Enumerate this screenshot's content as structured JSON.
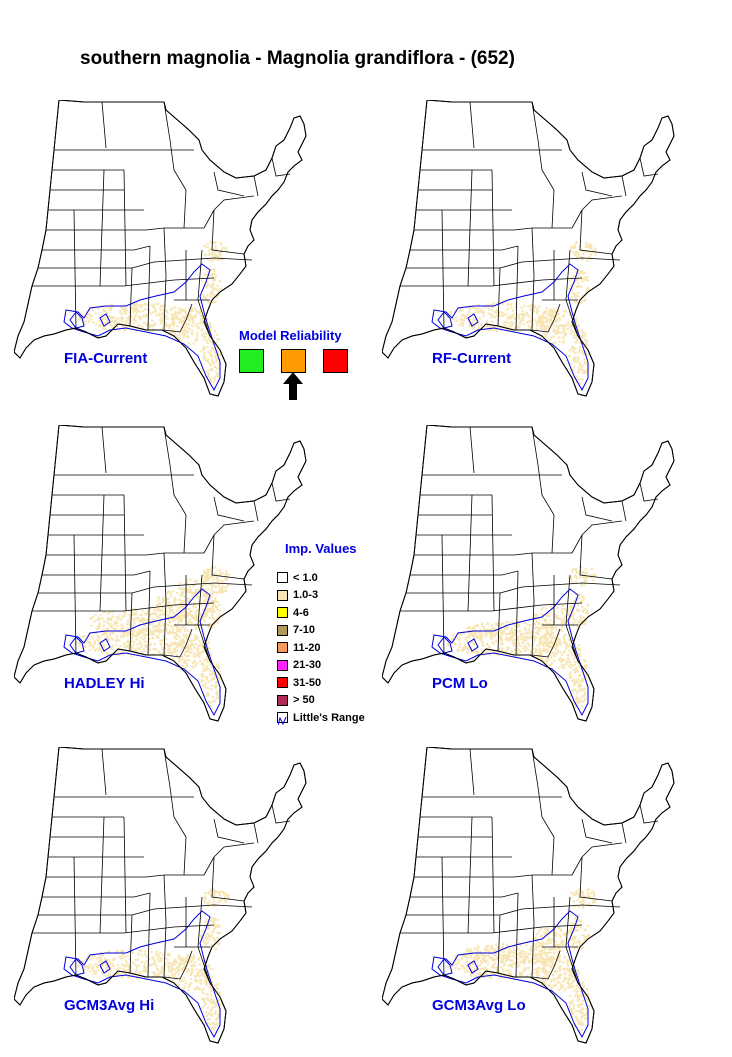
{
  "title": "southern magnolia - Magnolia grandiflora - (652)",
  "maps": [
    {
      "label": "FIA-Current"
    },
    {
      "label": "RF-Current"
    },
    {
      "label": "HADLEY Hi"
    },
    {
      "label": "PCM Lo"
    },
    {
      "label": "GCM3Avg Hi"
    },
    {
      "label": "GCM3Avg Lo"
    }
  ],
  "reliability": {
    "title": "Model Reliability",
    "levels": [
      {
        "color": "#22ee22"
      },
      {
        "color": "#ff9a00",
        "selected": true
      },
      {
        "color": "#ff0000"
      }
    ]
  },
  "importance": {
    "title": "Imp. Values",
    "items": [
      {
        "label": "< 1.0",
        "color": "#ffffff"
      },
      {
        "label": "1.0-3",
        "color": "#f7e6b4"
      },
      {
        "label": "4-6",
        "color": "#ffff00"
      },
      {
        "label": "7-10",
        "color": "#b09a5a"
      },
      {
        "label": "11-20",
        "color": "#f59a5a"
      },
      {
        "label": "21-30",
        "color": "#ff22ff"
      },
      {
        "label": "31-50",
        "color": "#ff0000"
      },
      {
        "label": "> 50",
        "color": "#b02a5a"
      },
      {
        "label": "Little's Range",
        "color": "#0000e0",
        "range": true
      }
    ]
  },
  "colors": {
    "label_blue": "#0000e0",
    "range_blue": "#0000e0",
    "presence": "#f7e6b4"
  }
}
